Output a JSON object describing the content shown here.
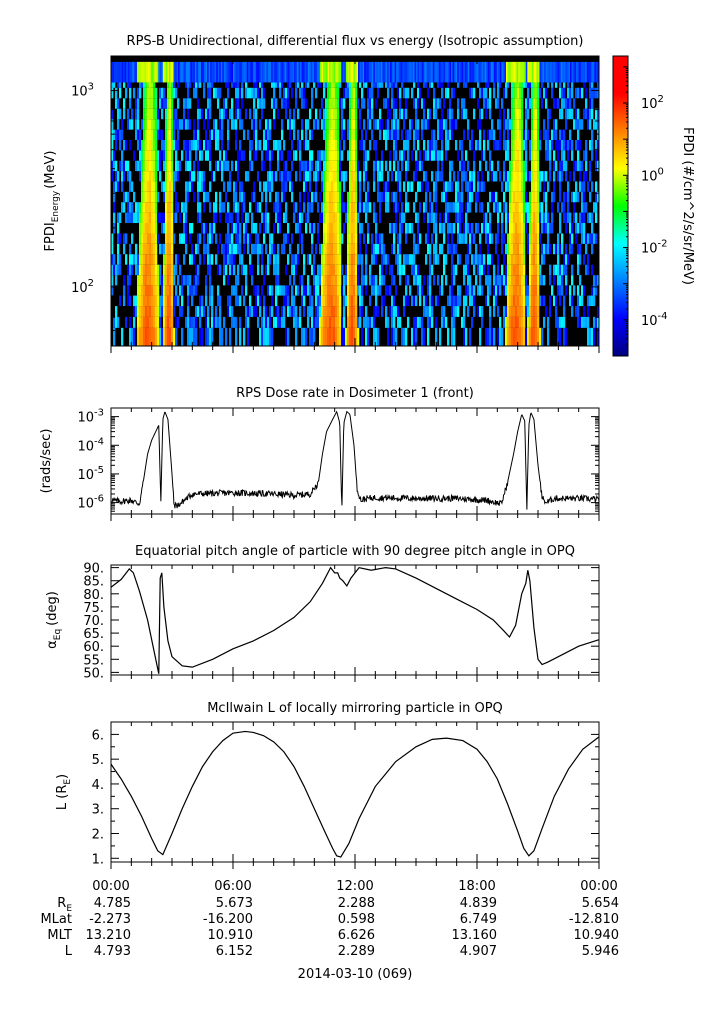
{
  "chart_data": [
    {
      "type": "heatmap",
      "title": "RPS-B  Unidirectional, differential flux vs energy (Isotropic assumption)",
      "ylabel": "FPDI",
      "ylabel_sub": "Energy",
      "ylabel_unit": "(MeV)",
      "yscale": "log",
      "ylim": [
        50,
        1500
      ],
      "yticks": [
        {
          "value": 1000,
          "base": "10",
          "exp": "3"
        },
        {
          "value": 100,
          "base": "10",
          "exp": "2"
        }
      ],
      "x_hours": [
        0,
        24
      ],
      "energy_channels_MeV": [
        58,
        66,
        75,
        85,
        96,
        108,
        122,
        138,
        156,
        176,
        199,
        225,
        254,
        287,
        324,
        366,
        413,
        467,
        527,
        595,
        672,
        760,
        860,
        970,
        1100
      ],
      "saturation_band_MeV": [
        1100,
        1400
      ],
      "belt_passes_hours": [
        [
          1.25,
          2.35
        ],
        [
          2.55,
          3.1
        ],
        [
          10.25,
          11.35
        ],
        [
          11.55,
          12.15
        ],
        [
          19.4,
          20.4
        ],
        [
          20.5,
          21.1
        ]
      ],
      "colorbar": {
        "label": "FPDI (#/cm^2/s/sr/MeV)",
        "scale": "log",
        "range": [
          1e-05,
          2000
        ],
        "ticks": [
          {
            "value": 0.0001,
            "base": "10",
            "exp": "-4"
          },
          {
            "value": 0.01,
            "base": "10",
            "exp": "-2"
          },
          {
            "value": 1,
            "base": "10",
            "exp": "0"
          },
          {
            "value": 100,
            "base": "10",
            "exp": "2"
          }
        ]
      }
    },
    {
      "type": "line",
      "title": "RPS  Dose rate in Dosimeter 1 (front)",
      "ylabel": "(rads/sec)",
      "yscale": "log",
      "ylim": [
        4e-07,
        0.002
      ],
      "yticks": [
        {
          "value": 0.001,
          "base": "10",
          "exp": "-3"
        },
        {
          "value": 0.0001,
          "base": "10",
          "exp": "-4"
        },
        {
          "value": 1e-05,
          "base": "10",
          "exp": "-5"
        },
        {
          "value": 1e-06,
          "base": "10",
          "exp": "-6"
        }
      ],
      "x": [
        0,
        0.5,
        1.0,
        1.4,
        1.6,
        1.8,
        2.0,
        2.2,
        2.35,
        2.45,
        2.55,
        2.65,
        2.8,
        3.0,
        3.1,
        3.3,
        3.6,
        4.0,
        6.0,
        8.0,
        9.0,
        9.8,
        10.2,
        10.4,
        10.6,
        10.9,
        11.1,
        11.25,
        11.35,
        11.45,
        11.6,
        11.75,
        11.95,
        12.1,
        12.3,
        12.6,
        13.0,
        15.0,
        17.0,
        18.5,
        19.2,
        19.5,
        19.8,
        20.0,
        20.2,
        20.35,
        20.45,
        20.55,
        20.65,
        20.8,
        21.0,
        21.2,
        21.4,
        21.8,
        23.0,
        24.0
      ],
      "y": [
        1.2e-06,
        1.1e-06,
        1.2e-06,
        9e-07,
        6e-06,
        5e-05,
        0.00015,
        0.0003,
        0.0005,
        1e-06,
        0.0008,
        0.0015,
        0.0008,
        1e-05,
        8e-07,
        8e-07,
        1.2e-06,
        2e-06,
        2.2e-06,
        2e-06,
        1.8e-06,
        2e-06,
        5e-06,
        5e-05,
        0.0003,
        0.0008,
        0.0015,
        0.0006,
        5e-07,
        0.0006,
        0.0015,
        0.0012,
        0.0001,
        3e-06,
        1.2e-06,
        1.4e-06,
        1.5e-06,
        1.4e-06,
        1.4e-06,
        1.2e-06,
        9e-07,
        5e-06,
        5e-05,
        0.0003,
        0.0012,
        0.0007,
        5e-07,
        0.0005,
        0.0014,
        0.0008,
        2e-05,
        1.5e-06,
        1e-06,
        1.4e-06,
        1.4e-06,
        1.3e-06
      ]
    },
    {
      "type": "line",
      "title": "Equatorial pitch angle of particle with 90 degree pitch angle in OPQ",
      "ylabel": "α",
      "ylabel_sub": "Eq",
      "ylabel_unit": "(deg)",
      "ylim": [
        49,
        91
      ],
      "yticks": [
        "90.",
        "85.",
        "80.",
        "75.",
        "70.",
        "65.",
        "60.",
        "55.",
        "50."
      ],
      "ytick_values": [
        90,
        85,
        80,
        75,
        70,
        65,
        60,
        55,
        50
      ],
      "x": [
        0,
        0.5,
        0.9,
        1.1,
        1.4,
        1.8,
        2.2,
        2.35,
        2.42,
        2.5,
        2.6,
        2.8,
        3.0,
        3.5,
        4.0,
        5.0,
        6.0,
        7.0,
        8.0,
        9.0,
        9.8,
        10.4,
        10.8,
        11.0,
        11.15,
        11.25,
        11.4,
        11.6,
        11.8,
        12.2,
        12.8,
        13.5,
        14.0,
        15.0,
        16.0,
        17.0,
        18.0,
        18.8,
        19.3,
        19.6,
        19.9,
        20.2,
        20.4,
        20.5,
        20.6,
        20.8,
        21.0,
        21.2,
        21.5,
        22.0,
        23.0,
        24.0
      ],
      "y": [
        82.5,
        85.5,
        89.5,
        88,
        81,
        70,
        55,
        49.5,
        86,
        88,
        75,
        62,
        56,
        52.5,
        52,
        55,
        59,
        62,
        66,
        71,
        77,
        84,
        90,
        88,
        88,
        86,
        85,
        83,
        86,
        90,
        89,
        90,
        89.5,
        86,
        82,
        78,
        74,
        70,
        66,
        63.5,
        68,
        80,
        84,
        89,
        85,
        67,
        55,
        53,
        54,
        56,
        60,
        62.5
      ]
    },
    {
      "type": "line",
      "title": "McIlwain L of locally mirroring particle in OPQ",
      "ylabel": "L (R",
      "ylabel_sub": "E",
      "ylabel_unit": ")",
      "ylim": [
        0.85,
        6.5
      ],
      "yticks": [
        "6.",
        "5.",
        "4.",
        "3.",
        "2.",
        "1."
      ],
      "ytick_values": [
        6,
        5,
        4,
        3,
        2,
        1
      ],
      "x": [
        0,
        0.5,
        1.0,
        1.5,
        2.0,
        2.3,
        2.55,
        3.0,
        3.5,
        4.0,
        4.5,
        5.0,
        5.5,
        6.0,
        6.6,
        7.0,
        7.5,
        8.0,
        8.5,
        9.0,
        9.5,
        10.0,
        10.5,
        10.9,
        11.1,
        11.3,
        11.7,
        12.2,
        13.0,
        14.0,
        15.0,
        15.8,
        16.5,
        17.3,
        18.0,
        18.5,
        19.0,
        19.5,
        20.0,
        20.3,
        20.55,
        20.8,
        21.2,
        21.8,
        22.5,
        23.2,
        24.0
      ],
      "y": [
        4.8,
        4.2,
        3.5,
        2.7,
        1.8,
        1.3,
        1.15,
        2.0,
        3.0,
        3.9,
        4.7,
        5.3,
        5.75,
        6.05,
        6.12,
        6.08,
        5.95,
        5.7,
        5.3,
        4.7,
        3.9,
        3.0,
        2.1,
        1.4,
        1.1,
        1.05,
        1.6,
        2.6,
        3.9,
        4.9,
        5.5,
        5.8,
        5.85,
        5.75,
        5.4,
        4.9,
        4.2,
        3.2,
        2.1,
        1.4,
        1.1,
        1.3,
        2.2,
        3.5,
        4.6,
        5.4,
        5.9
      ]
    }
  ],
  "x_axis": {
    "tick_labels": [
      "00:00",
      "06:00",
      "12:00",
      "18:00",
      "00:00"
    ],
    "tick_hours": [
      0,
      6,
      12,
      18,
      24
    ],
    "date_label": "2014-03-10 (069)"
  },
  "ephemeris": [
    {
      "label": "R",
      "label_sub": "E",
      "values": [
        "4.785",
        "5.673",
        "2.288",
        "4.839",
        "5.654"
      ]
    },
    {
      "label": "MLat",
      "label_sub": "",
      "values": [
        "-2.273",
        "-16.200",
        "0.598",
        "6.749",
        "-12.810"
      ]
    },
    {
      "label": "MLT",
      "label_sub": "",
      "values": [
        "13.210",
        "10.910",
        "6.626",
        "13.160",
        "10.940"
      ]
    },
    {
      "label": "L",
      "label_sub": "",
      "values": [
        "4.793",
        "6.152",
        "2.289",
        "4.907",
        "5.946"
      ]
    }
  ]
}
